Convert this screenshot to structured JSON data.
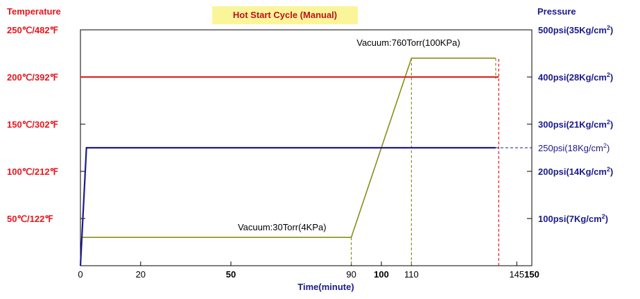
{
  "chart_data": {
    "type": "line",
    "title": "Hot Start Cycle (Manual)",
    "left_axis_title": "Temperature",
    "right_axis_title": "Pressure",
    "xlabel": "Time(minute)",
    "xlim": [
      0,
      150
    ],
    "x_ticks": [
      {
        "value": 0,
        "label": "0",
        "bold": false
      },
      {
        "value": 20,
        "label": "20",
        "bold": false
      },
      {
        "value": 50,
        "label": "50",
        "bold": true
      },
      {
        "value": 90,
        "label": "90",
        "bold": false
      },
      {
        "value": 100,
        "label": "100",
        "bold": true
      },
      {
        "value": 110,
        "label": "110",
        "bold": false
      },
      {
        "value": 145,
        "label": "145",
        "bold": false
      },
      {
        "value": 150,
        "label": "150",
        "bold": true
      }
    ],
    "left_axis": {
      "unit": "°C",
      "range": [
        0,
        250
      ],
      "ticks": [
        {
          "value": 250,
          "label": "250℃/482℉"
        },
        {
          "value": 200,
          "label": "200℃/392℉"
        },
        {
          "value": 150,
          "label": "150℃/302℉"
        },
        {
          "value": 100,
          "label": "100℃/212℉"
        },
        {
          "value": 50,
          "label": "50℃/122℉"
        }
      ]
    },
    "right_axis": {
      "unit": "psi",
      "range": [
        0,
        500
      ],
      "ticks": [
        {
          "value": 500,
          "prefix": "500psi(35Kg/cm",
          "suffix": ")"
        },
        {
          "value": 400,
          "prefix": "400psi(28Kg/cm",
          "suffix": ")"
        },
        {
          "value": 300,
          "prefix": "300psi(21Kg/cm",
          "suffix": ")"
        },
        {
          "value": 200,
          "prefix": "200psi(14Kg/cm",
          "suffix": ")"
        },
        {
          "value": 100,
          "prefix": "100psi(7Kg/cm",
          "suffix": ")"
        }
      ],
      "extra_label": {
        "value": 250,
        "prefix": "250psi(18Kg/cm",
        "suffix": ")"
      }
    },
    "series": [
      {
        "name": "Temperature",
        "axis": "left",
        "color": "#e8141c",
        "points": [
          [
            0,
            200
          ],
          [
            139,
            200
          ]
        ]
      },
      {
        "name": "Pressure",
        "axis": "right",
        "color": "#1a1a8c",
        "points": [
          [
            0,
            0
          ],
          [
            2,
            250
          ],
          [
            138,
            250
          ]
        ]
      },
      {
        "name": "Vacuum",
        "axis": "right",
        "color": "#8c8c1a",
        "points": [
          [
            0,
            60
          ],
          [
            90,
            60
          ],
          [
            110,
            440
          ],
          [
            138,
            440
          ]
        ]
      }
    ],
    "annotations": [
      {
        "text": "Vacuum:30Torr(4KPa)",
        "x": 67,
        "axis_value": 75
      },
      {
        "text": "Vacuum:760Torr(100KPa)",
        "x": 109,
        "axis_value": 466
      }
    ],
    "superscript": "2",
    "pressure_unit": "psi"
  }
}
